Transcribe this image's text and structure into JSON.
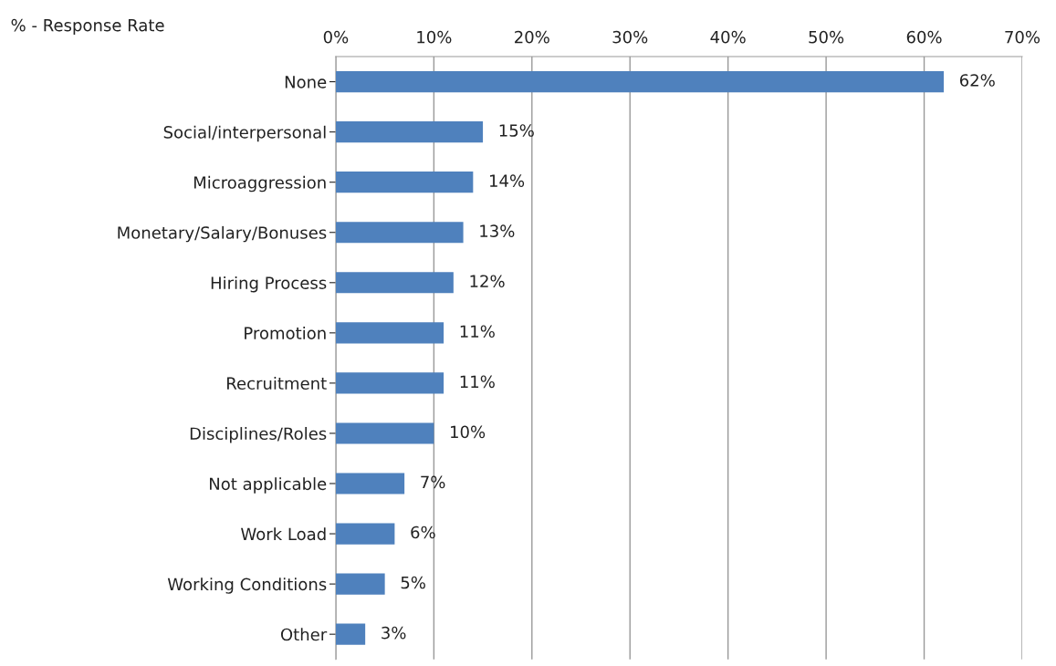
{
  "chart_data": {
    "type": "bar",
    "orientation": "horizontal",
    "title": "% - Response Rate",
    "categories": [
      "None",
      "Social/interpersonal",
      "Microaggression",
      "Monetary/Salary/Bonuses",
      "Hiring Process",
      "Promotion",
      "Recruitment",
      "Disciplines/Roles",
      "Not applicable",
      "Work Load",
      "Working Conditions",
      "Other"
    ],
    "values": [
      62,
      15,
      14,
      13,
      12,
      11,
      11,
      10,
      7,
      6,
      5,
      3
    ],
    "value_labels": [
      "62%",
      "15%",
      "14%",
      "13%",
      "12%",
      "11%",
      "11%",
      "10%",
      "7%",
      "6%",
      "5%",
      "3%"
    ],
    "color": "#4f81bd",
    "xlim": [
      0,
      70
    ],
    "xticks": [
      {
        "value": 0,
        "label": "0%"
      },
      {
        "value": 10,
        "label": "10%"
      },
      {
        "value": 20,
        "label": "20%"
      },
      {
        "value": 30,
        "label": "30%"
      },
      {
        "value": 40,
        "label": "40%"
      },
      {
        "value": 50,
        "label": "50%"
      },
      {
        "value": 60,
        "label": "60%"
      },
      {
        "value": 70,
        "label": "70%"
      }
    ],
    "grid": "x",
    "legend": false
  }
}
